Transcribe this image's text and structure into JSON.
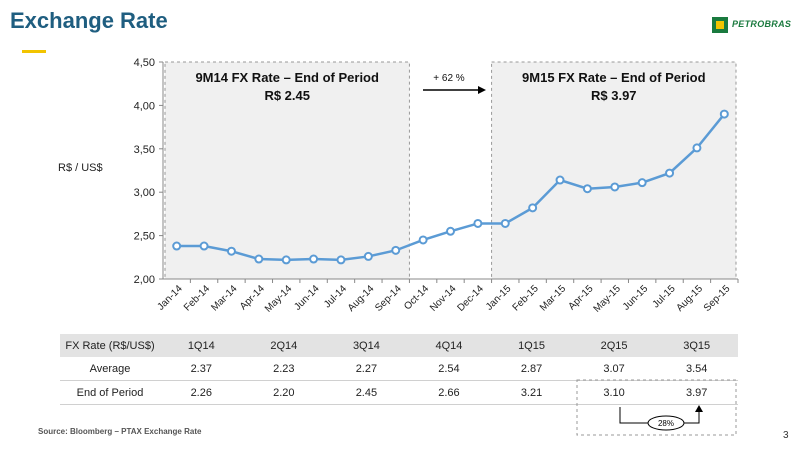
{
  "header": {
    "title": "Exchange Rate",
    "logo_text": "PETROBRAS"
  },
  "colors": {
    "title": "#1f5e80",
    "accent": "#f2c400",
    "series": "#5b9bd5",
    "logo": "#1a7a3e"
  },
  "chart_data": {
    "type": "line",
    "ylabel": "R$ / US$",
    "ylim": [
      2.0,
      4.5
    ],
    "yticks": [
      "2,00",
      "2,50",
      "3,00",
      "3,50",
      "4,00",
      "4,50"
    ],
    "categories": [
      "Jan-14",
      "Feb-14",
      "Mar-14",
      "Apr-14",
      "May-14",
      "Jun-14",
      "Jul-14",
      "Aug-14",
      "Sep-14",
      "Oct-14",
      "Nov-14",
      "Dec-14",
      "Jan-15",
      "Feb-15",
      "Mar-15",
      "Apr-15",
      "May-15",
      "Jun-15",
      "Jul-15",
      "Aug-15",
      "Sep-15"
    ],
    "series": [
      {
        "values": [
          2.38,
          2.38,
          2.32,
          2.23,
          2.22,
          2.23,
          2.22,
          2.26,
          2.33,
          2.45,
          2.55,
          2.64,
          2.64,
          2.82,
          3.14,
          3.04,
          3.06,
          3.11,
          3.22,
          3.51,
          3.9
        ]
      }
    ],
    "annotations": {
      "box_2014_line1": "9M14 FX Rate – End of Period",
      "box_2014_line2": "R$ 2.45",
      "box_2015_line1": "9M15 FX Rate – End of Period",
      "box_2015_line2": "R$ 3.97",
      "change": "+ 62 %"
    }
  },
  "table": {
    "header": [
      "FX Rate (R$/US$)",
      "1Q14",
      "2Q14",
      "3Q14",
      "4Q14",
      "1Q15",
      "2Q15",
      "3Q15"
    ],
    "rows": [
      [
        "Average",
        "2.37",
        "2.23",
        "2.27",
        "2.54",
        "2.87",
        "3.07",
        "3.54"
      ],
      [
        "End of Period",
        "2.26",
        "2.20",
        "2.45",
        "2.66",
        "3.21",
        "3.10",
        "3.97"
      ]
    ],
    "badge": "28%"
  },
  "footer": {
    "source": "Source: Bloomberg – PTAX Exchange Rate",
    "page": "3"
  }
}
